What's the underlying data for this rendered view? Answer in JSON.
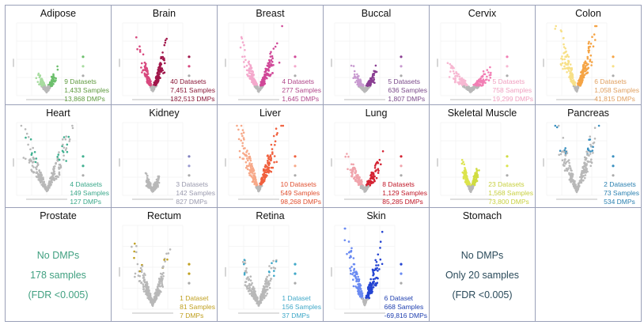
{
  "chart_data": [
    {
      "type": "scatter",
      "title": "Adipose",
      "colors": {
        "left": "#a8dca0",
        "right": "#6cbf6c",
        "text": "#5e9a3e"
      },
      "spread": 0.8,
      "height": 0.6,
      "stats": [
        "9 Datasets",
        "1,433 Samples",
        "13,868 DMPs"
      ]
    },
    {
      "type": "scatter",
      "title": "Brain",
      "colors": {
        "left": "#d8487e",
        "right": "#a0164a",
        "text": "#8a1838"
      },
      "spread": 1.2,
      "height": 1.0,
      "stats": [
        "40 Datasets",
        "7,451 Samples",
        "182,513 DMPs"
      ]
    },
    {
      "type": "scatter",
      "title": "Breast",
      "colors": {
        "left": "#f4a8cc",
        "right": "#d04898",
        "text": "#b0468a"
      },
      "spread": 1.6,
      "height": 0.8,
      "stats": [
        "4 Datasets",
        "277 Samples",
        "1,645 DMPs"
      ]
    },
    {
      "type": "scatter",
      "title": "Buccal",
      "colors": {
        "left": "#c89ad0",
        "right": "#8a3e92",
        "text": "#7a4a8a"
      },
      "spread": 0.9,
      "height": 0.55,
      "stats": [
        "5 Datasets",
        "636 Samples",
        "1,807 DMPs"
      ]
    },
    {
      "type": "scatter",
      "title": "Cervix",
      "colors": {
        "left": "#f7b8d2",
        "right": "#f27eb4",
        "text": "#f0a0c0"
      },
      "spread": 1.8,
      "height": 0.35,
      "stats": [
        "5 Datasets",
        "758 Samples",
        "19,299 DMPs"
      ]
    },
    {
      "type": "scatter",
      "title": "Colon",
      "colors": {
        "left": "#f7e088",
        "right": "#f5a445",
        "text": "#e0a060"
      },
      "spread": 1.6,
      "height": 1.0,
      "stats": [
        "6 Datasets",
        "1,058 Samples",
        "41,815 DMPs"
      ]
    },
    {
      "type": "scatter",
      "title": "Heart",
      "colors": {
        "left": "#40b090",
        "right": "#40b090",
        "text": "#3aa88a"
      },
      "spread": 2.0,
      "height": 0.8,
      "grey": true,
      "stats": [
        "4 Datasets",
        "149 Samples",
        "127 DMPs"
      ]
    },
    {
      "type": "scatter",
      "title": "Kidney",
      "colors": {
        "left": "#9a9ad0",
        "right": "#8080c0",
        "text": "#9a9aae"
      },
      "spread": 0.6,
      "height": 0.6,
      "grey": true,
      "stats": [
        "3 Datasets",
        "142 Samples",
        "827 DMPs"
      ]
    },
    {
      "type": "scatter",
      "title": "Liver",
      "colors": {
        "left": "#f7a888",
        "right": "#f0603e",
        "text": "#e05030"
      },
      "spread": 1.8,
      "height": 1.0,
      "stats": [
        "10 Datasets",
        "549 Samples",
        "98,268 DMPs"
      ]
    },
    {
      "type": "scatter",
      "title": "Lung",
      "colors": {
        "left": "#f0a4ac",
        "right": "#d42232",
        "text": "#c01828"
      },
      "spread": 1.5,
      "height": 0.6,
      "stats": [
        "8 Datasets",
        "1,129 Samples",
        "85,285 DMPs"
      ]
    },
    {
      "type": "scatter",
      "title": "Skeletal Muscle",
      "colors": {
        "left": "#dce44c",
        "right": "#d0dc40",
        "text": "#c8d040"
      },
      "spread": 0.7,
      "height": 1.0,
      "stats": [
        "23 Datasets",
        "1,568 Samples",
        "73,800 DMPs"
      ]
    },
    {
      "type": "scatter",
      "title": "Pancreas",
      "colors": {
        "left": "#3a90c0",
        "right": "#3a90c0",
        "text": "#2a80b0"
      },
      "spread": 1.8,
      "height": 1.0,
      "grey": true,
      "stats": [
        "2 Datasets",
        "73 Samples",
        "534 DMPs"
      ]
    },
    {
      "type": "text",
      "title": "Prostate",
      "colors": {
        "text": "#40a080"
      },
      "lines": [
        "No DMPs",
        "178 samples",
        "(FDR <0.005)"
      ]
    },
    {
      "type": "scatter",
      "title": "Rectum",
      "colors": {
        "left": "#c0a020",
        "right": "#c0a020",
        "text": "#c0a020"
      },
      "spread": 1.5,
      "height": 0.8,
      "grey": true,
      "stats": [
        "1 Dataset",
        "81 Samples",
        "7 DMPs"
      ]
    },
    {
      "type": "scatter",
      "title": "Retina",
      "colors": {
        "left": "#40a8c8",
        "right": "#40a8c8",
        "text": "#40a8c8"
      },
      "spread": 1.5,
      "height": 0.7,
      "grey": true,
      "stats": [
        "1 Dataset",
        "156 Samples",
        "37 DMPs"
      ]
    },
    {
      "type": "scatter",
      "title": "Skin",
      "colors": {
        "left": "#6a8af2",
        "right": "#2444d2",
        "text": "#2040b0"
      },
      "spread": 1.6,
      "height": 0.9,
      "stats": [
        "6 Dataset",
        "668 Samples",
        "-69,816 DMPs"
      ]
    },
    {
      "type": "text",
      "title": "Stomach",
      "colors": {
        "text": "#2a4a5a"
      },
      "lines": [
        "No DMPs",
        "Only 20 samples",
        "(FDR <0.005)"
      ]
    },
    {
      "type": "empty"
    }
  ]
}
